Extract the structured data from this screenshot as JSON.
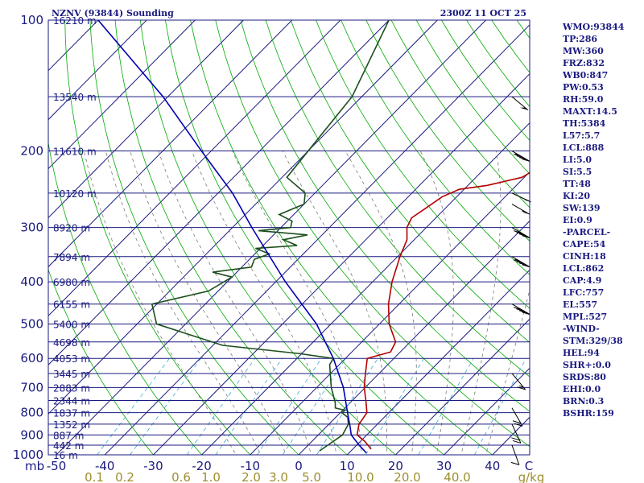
{
  "header": {
    "station": "NZNV (93844) Sounding",
    "time": "2300Z 11 OCT 25"
  },
  "stats": [
    "WMO:93844",
    "TP:286",
    "MW:360",
    "FRZ:832",
    "WB0:847",
    "PW:0.53",
    "RH:59.0",
    "MAXT:14.5",
    "TH:5384",
    "L57:5.7",
    "LCL:888",
    "LI:5.0",
    "SI:5.5",
    "TT:48",
    "KI:20",
    "SW:139",
    "EI:0.9",
    "-PARCEL-",
    "CAPE:54",
    "CINH:18",
    "LCL:862",
    "CAP:4.9",
    "LFC:757",
    "EL:557",
    "MPL:527",
    "-WIND-",
    "STM:329/38",
    "HEL:94",
    "SHR+:0.0",
    "SRDS:80",
    "EHI:0.0",
    "BRN:0.3",
    "BSHR:159"
  ],
  "colors": {
    "isobar": "#1a1a80",
    "isotherm": "#1a1a80",
    "dry_adiabat": "#00aa00",
    "moist_adiabat": "#7b7b7b",
    "mixing_ratio": "#3aa9d6",
    "temperature": "#b30000",
    "dewpoint": "#1c4f1c",
    "parcel": "#0000b0",
    "frame": "#1a1a80"
  },
  "chart_data": {
    "type": "line",
    "title": "",
    "xlabel": "",
    "ylabel": "",
    "x_unit_label": "C",
    "y_corner_label": "mb",
    "ylim": [
      1000,
      100
    ],
    "xlim": [
      -50,
      50
    ],
    "pressure_ticks": [
      100,
      200,
      300,
      400,
      500,
      600,
      700,
      800,
      900,
      1000
    ],
    "temp_ticks": [
      -50,
      -40,
      -30,
      -20,
      -10,
      0,
      10,
      20,
      30,
      40
    ],
    "mixing_ratio_labels": [
      "0.1",
      "0.2",
      "0.6",
      "1.0",
      "2.0",
      "3.0",
      "5.0",
      "10.0",
      "20.0",
      "40.0",
      "g/kg"
    ],
    "height_levels": [
      {
        "p": 100,
        "h": "16210 m"
      },
      {
        "p": 150,
        "h": "13540 m"
      },
      {
        "p": 200,
        "h": "11610 m"
      },
      {
        "p": 250,
        "h": "10120 m"
      },
      {
        "p": 300,
        "h": "8920 m"
      },
      {
        "p": 350,
        "h": "7894 m"
      },
      {
        "p": 400,
        "h": "6980 m"
      },
      {
        "p": 450,
        "h": "6155 m"
      },
      {
        "p": 500,
        "h": "5400 m"
      },
      {
        "p": 550,
        "h": "4698 m"
      },
      {
        "p": 600,
        "h": "4053 m"
      },
      {
        "p": 650,
        "h": "3445 m"
      },
      {
        "p": 700,
        "h": "2883 m"
      },
      {
        "p": 750,
        "h": "2344 m"
      },
      {
        "p": 800,
        "h": "1837 m"
      },
      {
        "p": 850,
        "h": "1352 m"
      },
      {
        "p": 900,
        "h": "887 m"
      },
      {
        "p": 950,
        "h": "442 m"
      },
      {
        "p": 1000,
        "h": "16 m"
      }
    ],
    "series": [
      {
        "name": "Temperature",
        "points": [
          [
            970,
            13.8
          ],
          [
            930,
            10.8
          ],
          [
            900,
            8.0
          ],
          [
            850,
            6.2
          ],
          [
            800,
            5.5
          ],
          [
            750,
            2.8
          ],
          [
            700,
            -0.2
          ],
          [
            650,
            -2.8
          ],
          [
            600,
            -5.5
          ],
          [
            580,
            -2.0
          ],
          [
            550,
            -3.0
          ],
          [
            500,
            -8.0
          ],
          [
            450,
            -12.2
          ],
          [
            400,
            -16.0
          ],
          [
            350,
            -19.5
          ],
          [
            320,
            -21.5
          ],
          [
            300,
            -24.0
          ],
          [
            285,
            -25.0
          ],
          [
            270,
            -24.0
          ],
          [
            255,
            -23.0
          ],
          [
            245,
            -21.0
          ],
          [
            240,
            -16.0
          ],
          [
            230,
            -10.5
          ],
          [
            210,
            -8.0
          ],
          [
            180,
            -10.5
          ],
          [
            150,
            -19.0
          ],
          [
            100,
            -37.0
          ]
        ]
      },
      {
        "name": "Dewpoint",
        "points": [
          [
            980,
            3.5
          ],
          [
            900,
            5.0
          ],
          [
            850,
            4.0
          ],
          [
            820,
            2.5
          ],
          [
            800,
            0.3
          ],
          [
            790,
            0.5
          ],
          [
            780,
            -2.0
          ],
          [
            760,
            -3.0
          ],
          [
            700,
            -7.0
          ],
          [
            620,
            -12.0
          ],
          [
            600,
            -12.5
          ],
          [
            585,
            -20.5
          ],
          [
            560,
            -38.0
          ],
          [
            500,
            -56.0
          ],
          [
            450,
            -61.0
          ],
          [
            420,
            -52.0
          ],
          [
            390,
            -50.0
          ],
          [
            380,
            -55.0
          ],
          [
            370,
            -48.0
          ],
          [
            355,
            -49.0
          ],
          [
            345,
            -47.0
          ],
          [
            335,
            -51.0
          ],
          [
            330,
            -43.0
          ],
          [
            320,
            -47.0
          ],
          [
            312,
            -43.0
          ],
          [
            305,
            -54.0
          ],
          [
            300,
            -48.0
          ],
          [
            290,
            -49.0
          ],
          [
            280,
            -53.0
          ],
          [
            265,
            -50.0
          ],
          [
            250,
            -52.0
          ],
          [
            230,
            -59.0
          ],
          [
            150,
            -62.0
          ],
          [
            100,
            -70.0
          ]
        ]
      },
      {
        "name": "Parcel",
        "points": [
          [
            990,
            13.6
          ],
          [
            950,
            10.5
          ],
          [
            900,
            6.8
          ],
          [
            862,
            4.9
          ],
          [
            800,
            1.5
          ],
          [
            700,
            -4.5
          ],
          [
            600,
            -12.5
          ],
          [
            500,
            -23.0
          ],
          [
            400,
            -38.0
          ],
          [
            300,
            -56.0
          ],
          [
            250,
            -67.0
          ],
          [
            200,
            -82.0
          ],
          [
            150,
            -101.0
          ],
          [
            100,
            -130.0
          ]
        ]
      }
    ],
    "winds": [
      {
        "p": 150,
        "dir": 310,
        "spd": 50
      },
      {
        "p": 200,
        "dir": 300,
        "spd": 45
      },
      {
        "p": 250,
        "dir": 295,
        "spd": 50
      },
      {
        "p": 265,
        "dir": 300,
        "spd": 55
      },
      {
        "p": 300,
        "dir": 300,
        "spd": 40
      },
      {
        "p": 350,
        "dir": 300,
        "spd": 45
      },
      {
        "p": 450,
        "dir": 300,
        "spd": 40
      },
      {
        "p": 650,
        "dir": 320,
        "spd": 15
      },
      {
        "p": 780,
        "dir": 330,
        "spd": 20
      },
      {
        "p": 850,
        "dir": 335,
        "spd": 20
      },
      {
        "p": 950,
        "dir": 340,
        "spd": 10
      }
    ]
  }
}
